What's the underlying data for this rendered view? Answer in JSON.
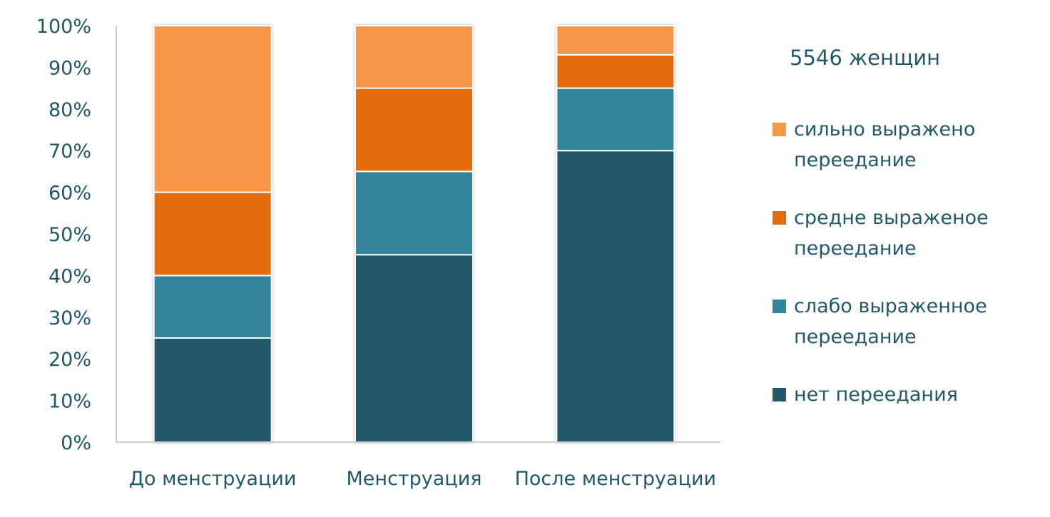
{
  "chart_data": {
    "type": "bar",
    "stacked": true,
    "categories": [
      "До менструации",
      "Менструация",
      "После менструации"
    ],
    "series": [
      {
        "name": "нет переедания",
        "color": "#215968",
        "values": [
          25,
          45,
          70
        ]
      },
      {
        "name": "слабо выраженное переедание",
        "color": "#31859C",
        "values": [
          15,
          20,
          15
        ]
      },
      {
        "name": "средне выраженое переедание",
        "color": "#E46C0A",
        "values": [
          20,
          20,
          8
        ]
      },
      {
        "name": "сильно выражено переедание",
        "color": "#F79646",
        "values": [
          40,
          15,
          7
        ]
      }
    ],
    "legend_title": "5546 женщин",
    "ylim": [
      0,
      100
    ],
    "yticks": [
      "0%",
      "10%",
      "20%",
      "30%",
      "40%",
      "50%",
      "60%",
      "70%",
      "80%",
      "90%",
      "100%"
    ],
    "grid": false,
    "legend_placement": "right"
  }
}
